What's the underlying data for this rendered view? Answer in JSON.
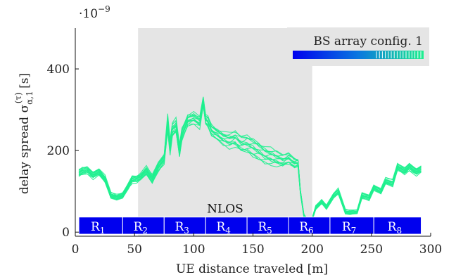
{
  "chart_data": {
    "type": "line",
    "title": "",
    "xlabel": "UE distance traveled [m]",
    "ylabel": "delay spread σ(τ)α,1 [s]",
    "ylabel_parts": {
      "main": "delay spread σ",
      "sup": "(τ)",
      "sub": "α,1",
      "unit": " [s]"
    },
    "y_multiplier": "·10",
    "y_multiplier_exp": "−9",
    "xlim": [
      0,
      300
    ],
    "ylim": [
      -10,
      500
    ],
    "xticks": [
      0,
      50,
      100,
      150,
      200,
      250,
      300
    ],
    "yticks": [
      0,
      200,
      400
    ],
    "grid": false,
    "legend": {
      "label": "BS array config. 1",
      "placement": "top-right"
    },
    "shaded_region": {
      "x": [
        53,
        200
      ],
      "label": "NLOS",
      "color": "#e5e5e5"
    },
    "regions": [
      {
        "label": "R",
        "sub": "1",
        "x": [
          3,
          40
        ]
      },
      {
        "label": "R",
        "sub": "2",
        "x": [
          40,
          75
        ]
      },
      {
        "label": "R",
        "sub": "3",
        "x": [
          75,
          110
        ]
      },
      {
        "label": "R",
        "sub": "4",
        "x": [
          110,
          145
        ]
      },
      {
        "label": "R",
        "sub": "5",
        "x": [
          145,
          180
        ]
      },
      {
        "label": "R",
        "sub": "6",
        "x": [
          180,
          215
        ]
      },
      {
        "label": "R",
        "sub": "7",
        "x": [
          215,
          252
        ]
      },
      {
        "label": "R",
        "sub": "8",
        "x": [
          252,
          292
        ]
      }
    ],
    "region_band_y": [
      -5,
      37
    ],
    "series_color": "#1fef8f",
    "series_count": 14,
    "x": [
      3,
      6,
      10,
      15,
      20,
      25,
      30,
      35,
      40,
      45,
      48,
      52,
      55,
      60,
      65,
      70,
      75,
      78,
      80,
      82,
      85,
      88,
      90,
      95,
      100,
      105,
      108,
      110,
      112,
      115,
      120,
      125,
      130,
      135,
      140,
      145,
      150,
      155,
      160,
      165,
      170,
      175,
      180,
      185,
      188,
      190,
      193,
      196,
      200,
      203,
      208,
      212,
      218,
      222,
      228,
      232,
      238,
      242,
      248,
      252,
      258,
      262,
      268,
      272,
      278,
      282,
      288,
      292
    ],
    "center": [
      145,
      150,
      152,
      140,
      148,
      130,
      90,
      85,
      90,
      115,
      130,
      130,
      135,
      150,
      130,
      160,
      180,
      270,
      210,
      250,
      260,
      200,
      240,
      275,
      280,
      270,
      320,
      275,
      270,
      250,
      240,
      230,
      225,
      228,
      215,
      215,
      208,
      200,
      190,
      185,
      180,
      175,
      180,
      170,
      170,
      100,
      40,
      28,
      32,
      60,
      75,
      62,
      90,
      100,
      50,
      48,
      50,
      90,
      85,
      110,
      100,
      125,
      120,
      160,
      150,
      160,
      148,
      155
    ],
    "center_note": "",
    "spread": [
      10,
      10,
      10,
      10,
      10,
      10,
      8,
      8,
      8,
      8,
      10,
      10,
      10,
      12,
      12,
      14,
      14,
      22,
      20,
      22,
      20,
      18,
      18,
      16,
      16,
      16,
      14,
      14,
      16,
      16,
      16,
      18,
      20,
      22,
      24,
      24,
      26,
      26,
      24,
      22,
      20,
      18,
      16,
      14,
      10,
      6,
      4,
      4,
      4,
      6,
      6,
      6,
      8,
      8,
      6,
      6,
      6,
      8,
      8,
      8,
      8,
      8,
      10,
      10,
      10,
      10,
      10,
      10
    ]
  }
}
